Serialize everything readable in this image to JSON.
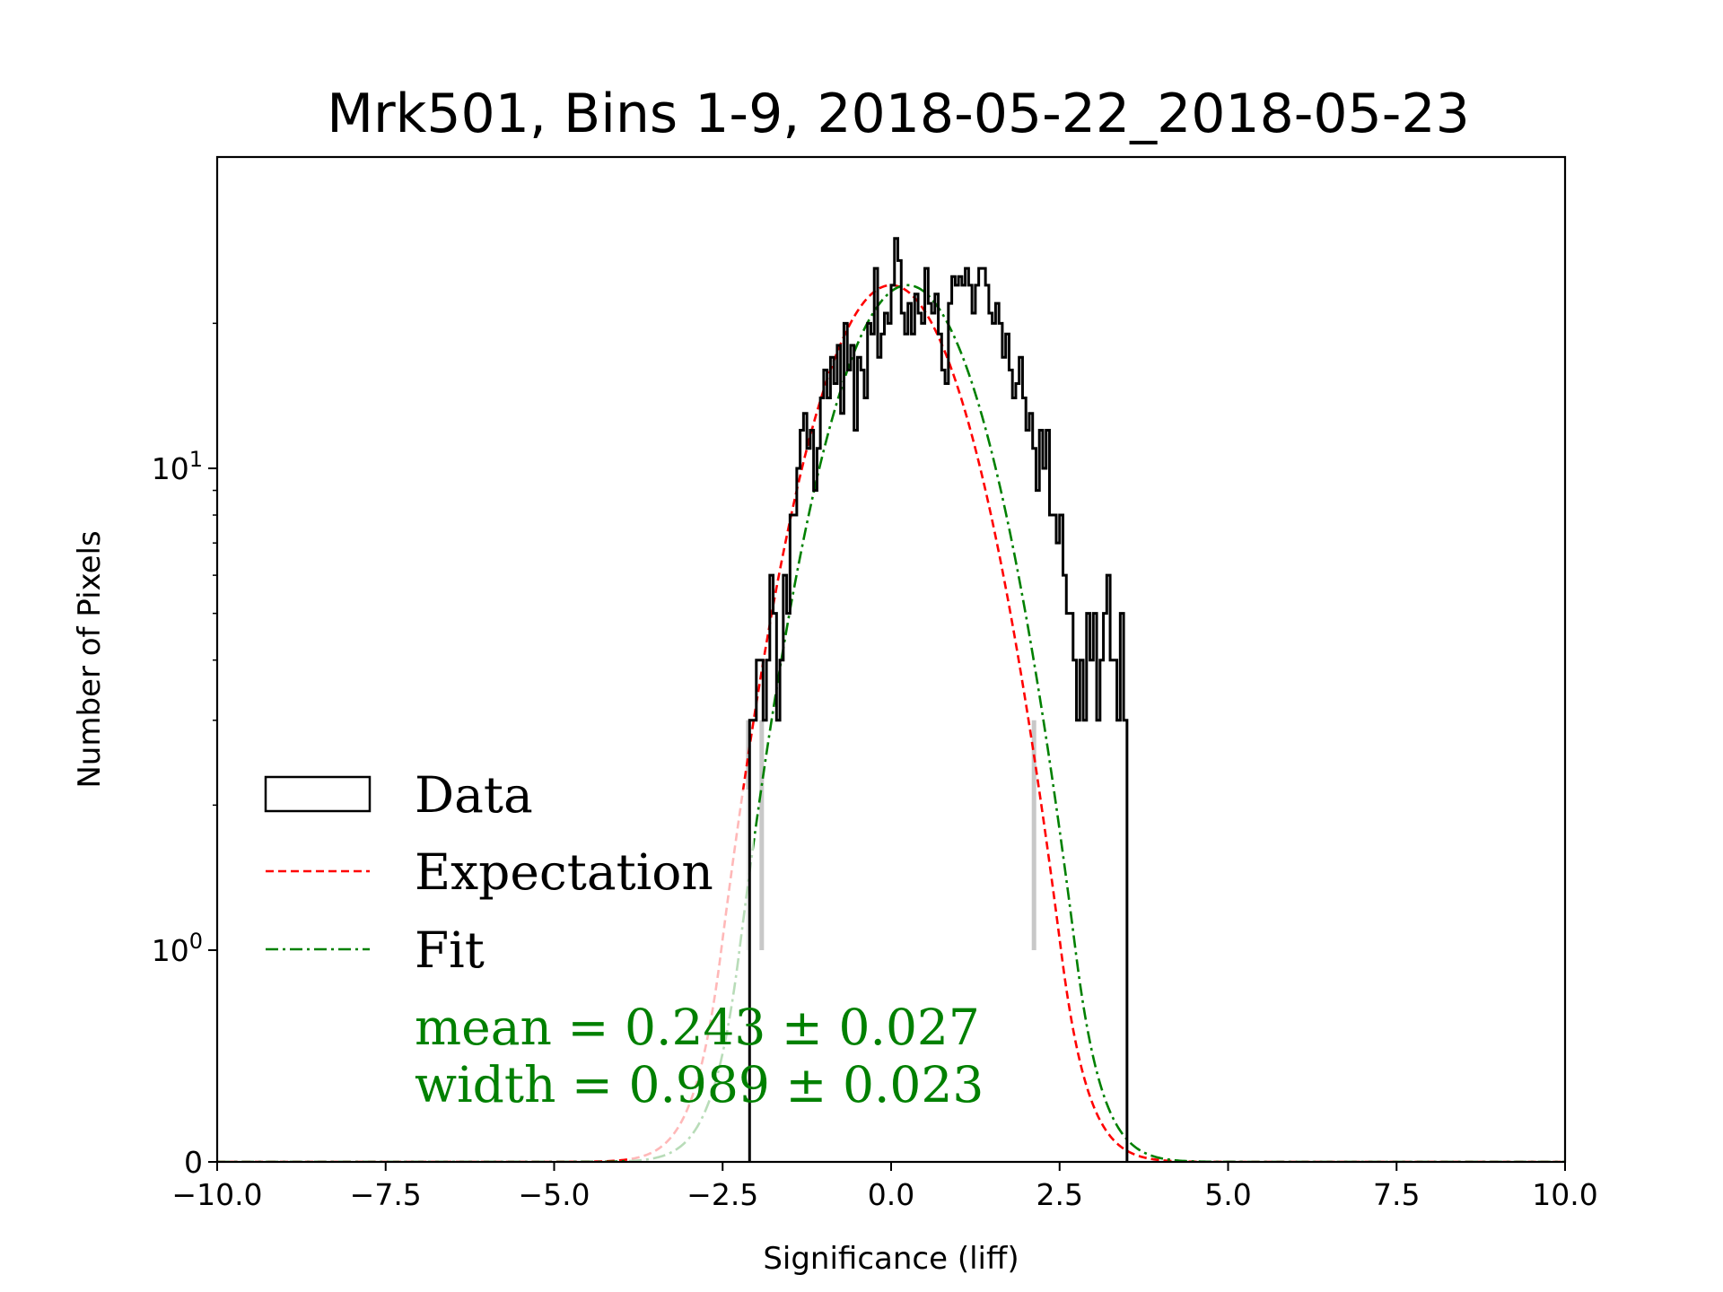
{
  "chart_data": {
    "type": "histogram",
    "title": "Mrk501, Bins 1-9, 2018-05-22_2018-05-23",
    "xlabel": "Significance (liff)",
    "ylabel": "Number of Pixels",
    "xlim": [
      -10,
      10
    ],
    "yscale": "symlog",
    "x_ticks": [
      "−10.0",
      "−7.5",
      "−5.0",
      "−2.5",
      "0.0",
      "2.5",
      "5.0",
      "7.5",
      "10.0"
    ],
    "x_tick_values": [
      -10,
      -7.5,
      -5,
      -2.5,
      0,
      2.5,
      5,
      7.5,
      10
    ],
    "y_ticks": [
      {
        "value": 0,
        "base": "0",
        "exp": ""
      },
      {
        "value": 1,
        "base": "10",
        "exp": "0"
      },
      {
        "value": 10,
        "base": "10",
        "exp": "1"
      }
    ],
    "legend": {
      "position": "lower-left",
      "entries": [
        {
          "label": "Data",
          "style": "box",
          "color": "#000000"
        },
        {
          "label": "Expectation",
          "style": "dashed",
          "color": "#ff0000"
        },
        {
          "label": "Fit",
          "style": "dashdot",
          "color": "#008000"
        }
      ]
    },
    "annotation": {
      "mean_text": "mean = 0.243 ± 0.027",
      "width_text": "width = 0.989 ± 0.023",
      "color": "#008000"
    },
    "fit": {
      "mean": 0.243,
      "width": 0.989,
      "amplitude": 24.0
    },
    "expectation": {
      "mean": 0.0,
      "width": 1.0,
      "amplitude": 24.0
    },
    "histogram": {
      "bin_start": -2.1,
      "bin_width": 0.05,
      "counts": [
        3,
        3,
        4,
        4,
        3,
        4,
        6,
        5,
        3,
        4,
        6,
        5,
        8,
        8,
        10,
        12,
        13,
        11,
        12,
        9,
        11,
        14,
        16,
        14,
        17,
        15,
        18,
        13,
        20,
        16,
        18,
        12,
        17,
        16,
        14,
        20,
        19,
        26,
        17,
        19,
        21,
        20,
        24,
        30,
        27,
        21,
        19,
        22,
        19,
        23,
        21,
        20,
        26,
        22,
        21,
        23,
        19,
        16,
        15,
        22,
        25,
        24,
        25,
        24,
        26,
        24,
        21,
        24,
        26,
        26,
        24,
        21,
        20,
        22,
        20,
        17,
        19,
        16,
        14,
        15,
        17,
        14,
        12,
        13,
        11,
        9,
        12,
        10,
        12,
        8,
        8,
        7,
        8,
        6,
        5,
        5,
        4,
        3,
        4,
        3,
        5,
        4,
        5,
        3,
        4,
        5,
        6,
        4,
        4,
        3,
        5,
        3
      ]
    },
    "error_bar_x": [
      -2.12,
      -1.92,
      2.12
    ]
  }
}
